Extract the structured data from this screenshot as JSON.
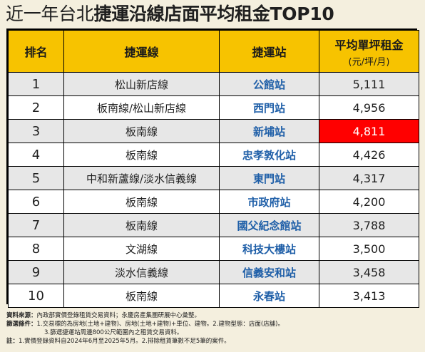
{
  "title": {
    "light": "近一年台北",
    "bold": "捷運沿線店面平均租金TOP10"
  },
  "headers": {
    "rank": "排名",
    "line": "捷運線",
    "station": "捷運站",
    "rent": "平均單坪租金",
    "rent_unit": "(元/坪/月)"
  },
  "rows": [
    {
      "rank": "1",
      "line": "松山新店線",
      "station": "公館站",
      "rent": "5,111"
    },
    {
      "rank": "2",
      "line": "板南線/松山新店線",
      "station": "西門站",
      "rent": "4,956"
    },
    {
      "rank": "3",
      "line": "板南線",
      "station": "新埔站",
      "rent": "4,811"
    },
    {
      "rank": "4",
      "line": "板南線",
      "station": "忠孝敦化站",
      "rent": "4,426"
    },
    {
      "rank": "5",
      "line": "中和新蘆線/淡水信義線",
      "station": "東門站",
      "rent": "4,317"
    },
    {
      "rank": "6",
      "line": "板南線",
      "station": "市政府站",
      "rent": "4,200"
    },
    {
      "rank": "7",
      "line": "板南線",
      "station": "國父紀念館站",
      "rent": "3,788"
    },
    {
      "rank": "8",
      "line": "文湖線",
      "station": "科技大樓站",
      "rent": "3,500"
    },
    {
      "rank": "9",
      "line": "淡水信義線",
      "station": "信義安和站",
      "rent": "3,458"
    },
    {
      "rank": "10",
      "line": "板南線",
      "station": "永春站",
      "rent": "3,413"
    }
  ],
  "highlight_color": "#ff0000",
  "header_color": "#f7c300",
  "station_color": "#1f5fa8",
  "notes": {
    "source_label": "資料來源：",
    "source_text": "內政部實價登錄租賃交易資料；永慶房產集團研展中心彙整。",
    "condition_label": "篩選條件：",
    "condition_text": "1.交易標的為房地(土地+建物)、房地(土地+建物)+車位、建物。2.建物型態：店面(店舖)。",
    "condition_text_2": "3.篩選捷運站周邊800公尺範圍內之租賃交易資料。",
    "note_label": "註：",
    "note_text": "1.實價登錄資料自2024年6月至2025年5月。2.排除租賃筆數不足5筆的案件。"
  }
}
